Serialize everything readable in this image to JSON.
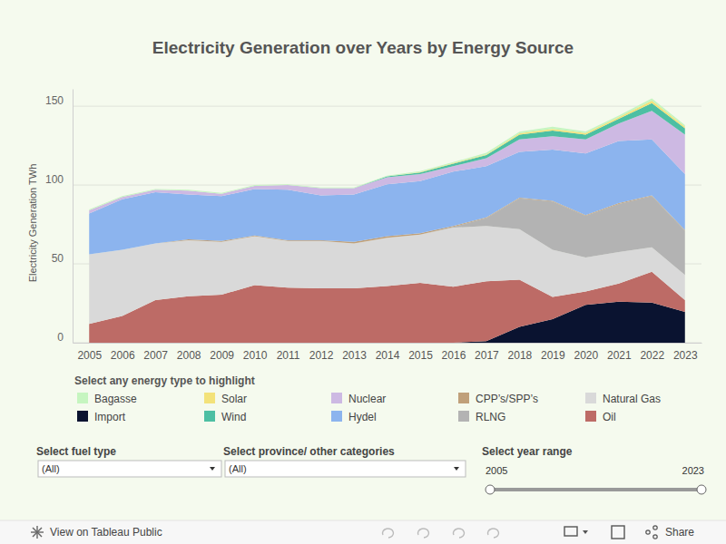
{
  "chart_data": {
    "type": "area",
    "title": "Electricity Generation over Years by Energy Source",
    "y_label": "Electricity Generation TWh",
    "stacked": true,
    "grid": true,
    "x": [
      2005,
      2006,
      2007,
      2008,
      2009,
      2010,
      2011,
      2012,
      2013,
      2014,
      2015,
      2016,
      2017,
      2018,
      2019,
      2020,
      2021,
      2022,
      2023
    ],
    "xlim": [
      2004.5,
      2023.5
    ],
    "xticks": [
      2005,
      2006,
      2007,
      2008,
      2009,
      2010,
      2011,
      2012,
      2013,
      2014,
      2015,
      2016,
      2017,
      2018,
      2019,
      2020,
      2021,
      2022,
      2023
    ],
    "ylim": [
      0,
      161
    ],
    "yticks": [
      0,
      50,
      100,
      150
    ],
    "series": [
      {
        "name": "Bagasse",
        "color": "#c6f5c0",
        "values": [
          0.5,
          0.5,
          0.5,
          0.5,
          0.5,
          0.5,
          0.5,
          0.5,
          0.5,
          0.5,
          0.5,
          0.5,
          1,
          1,
          1.5,
          1,
          1,
          1.5,
          1
        ]
      },
      {
        "name": "Solar",
        "color": "#f3e27a",
        "values": [
          0,
          0,
          0,
          0,
          0,
          0,
          0,
          0,
          0,
          0,
          0.3,
          0.5,
          0.5,
          0.8,
          1,
          1,
          1,
          1.5,
          1
        ]
      },
      {
        "name": "Nuclear",
        "color": "#cdb9e3",
        "values": [
          2,
          1.5,
          1.5,
          2.5,
          1.5,
          2,
          3,
          4.5,
          4,
          4.5,
          4.5,
          3.5,
          5,
          8,
          8.5,
          9,
          11,
          18,
          25
        ]
      },
      {
        "name": "CPP’s/SPP’s",
        "color": "#c0a07a",
        "values": [
          0,
          0,
          0,
          0.5,
          0.5,
          0.5,
          0.5,
          0.5,
          1,
          1,
          1,
          0.5,
          0.5,
          0.5,
          0.5,
          0.5,
          0.5,
          0.5,
          0.5
        ]
      },
      {
        "name": "Natural Gas",
        "color": "#d9d9d9",
        "values": [
          44,
          42,
          36,
          35.5,
          33.5,
          31,
          29.5,
          30,
          28.5,
          30.5,
          30.5,
          37.5,
          35,
          32,
          30,
          21.5,
          20,
          15.5,
          16
        ]
      },
      {
        "name": "Import",
        "color": "#0a1330",
        "values": [
          0,
          0,
          0,
          0,
          0,
          0,
          0,
          0,
          0,
          0,
          0,
          0,
          1,
          10,
          15,
          24,
          26,
          25.5,
          19.5
        ]
      },
      {
        "name": "Wind",
        "color": "#4dbfa3",
        "values": [
          0,
          0,
          0,
          0,
          0,
          0,
          0,
          0,
          0,
          0.5,
          1,
          1.5,
          2,
          3,
          3.5,
          3,
          3,
          5,
          4
        ]
      },
      {
        "name": "Hydel",
        "color": "#8cb4ee",
        "values": [
          26,
          32,
          32.5,
          28.5,
          28.5,
          29.5,
          32,
          28.5,
          30,
          33,
          33,
          34.5,
          32.5,
          29,
          32.5,
          39,
          39.5,
          35.5,
          35.5
        ]
      },
      {
        "name": "RLNG",
        "color": "#b3b3b3",
        "values": [
          0,
          0,
          0,
          0,
          0,
          0,
          0,
          0,
          0,
          0,
          0,
          0.5,
          5,
          19.5,
          30.5,
          26.5,
          30.5,
          32.5,
          28
        ]
      },
      {
        "name": "Oil",
        "color": "#bd6b66",
        "values": [
          12,
          17,
          27,
          29.5,
          30.5,
          36.5,
          35,
          34.5,
          34.5,
          36,
          38,
          35.5,
          38,
          30,
          14,
          8.5,
          11.5,
          19.5,
          7.5
        ]
      }
    ]
  },
  "controls": {
    "legend_title": "Select any energy type to highlight",
    "filters": [
      {
        "label": "Select fuel type",
        "value": "(All)"
      },
      {
        "label": "Select province/ other categories",
        "value": "(All)"
      }
    ],
    "year_range": {
      "label": "Select year range",
      "start": 2005,
      "end": 2023
    },
    "toolbar": {
      "link": "View on Tableau Public",
      "share": "Share"
    }
  }
}
